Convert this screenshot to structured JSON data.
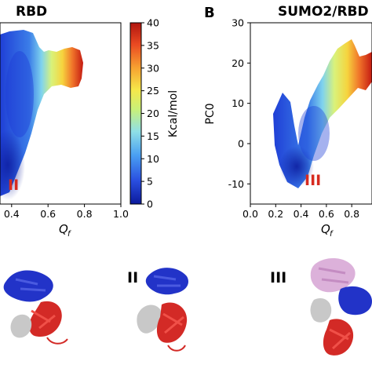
{
  "chart_data": [
    {
      "type": "heatmap",
      "panel": "",
      "title": "RBD",
      "xlabel": "Q",
      "xlabel_subscript": "f",
      "ylabel": "",
      "xlim": [
        0.0,
        1.0
      ],
      "ylim": [
        -15,
        30
      ],
      "xticks": [
        "0.4",
        "0.6",
        "0.8",
        "1.0"
      ],
      "annotations": [
        {
          "text": "II",
          "x": 0.3,
          "y": -8,
          "color": "#d72b20"
        }
      ]
    },
    {
      "type": "heatmap",
      "panel": "B",
      "title": "SUMO2/RBD",
      "xlabel": "Q",
      "xlabel_subscript": "f",
      "ylabel": "PC0",
      "xlim": [
        0.0,
        1.0
      ],
      "ylim": [
        -15,
        30
      ],
      "xticks": [
        "0.0",
        "0.2",
        "0.4",
        "0.6",
        "0.8"
      ],
      "yticks": [
        "30",
        "20",
        "10",
        "0",
        "-10"
      ],
      "annotations": [
        {
          "text": "III",
          "x": 0.36,
          "y": -10,
          "color": "#d72b20"
        }
      ]
    }
  ],
  "colorbar": {
    "label": "Kcal/mol",
    "min": 0,
    "max": 40,
    "ticks": [
      "40",
      "35",
      "30",
      "25",
      "20",
      "15",
      "10",
      "5",
      "0"
    ],
    "colors": [
      "#0b1a9c",
      "#2a4fe0",
      "#4aa0f2",
      "#8fe0e6",
      "#c8f07a",
      "#f6e84a",
      "#f7a331",
      "#ea4a22",
      "#b0150f"
    ]
  },
  "structures": {
    "labels": [
      "II",
      "III"
    ],
    "colors": {
      "domain_a": "#2233c8",
      "domain_b": "#d32a26",
      "domain_c": "#c8c8c8",
      "sumo": "#d8a8d6"
    }
  }
}
